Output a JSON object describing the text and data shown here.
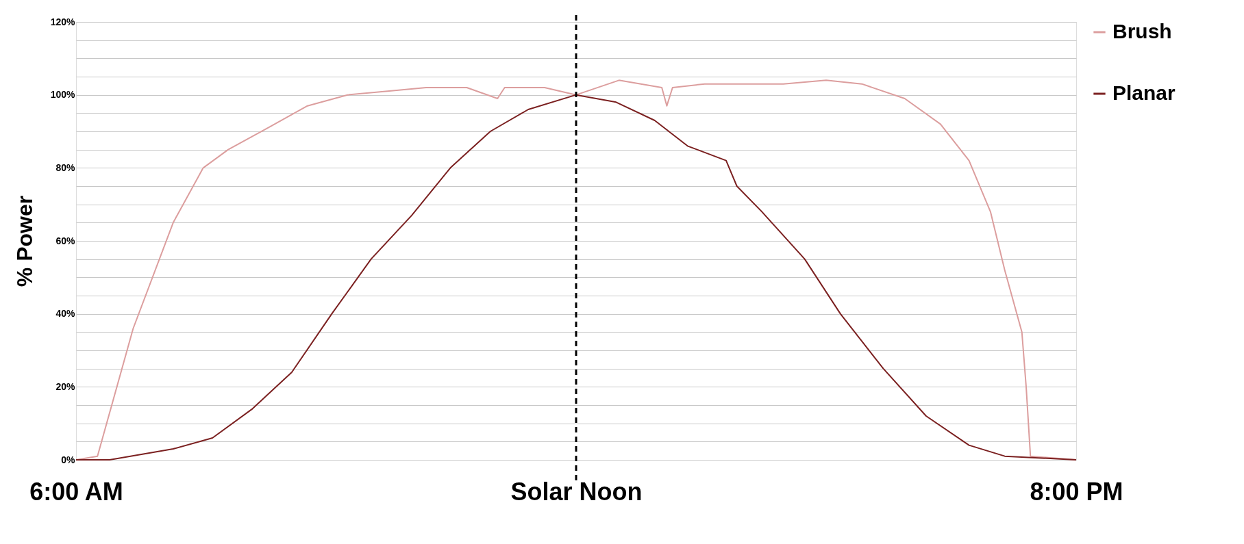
{
  "chart_data": {
    "type": "line",
    "ylabel": "% Power",
    "xlim": [
      6,
      20
    ],
    "xticks": [
      {
        "value": 6,
        "label": "6:00 AM"
      },
      {
        "value": 13,
        "label": "Solar Noon"
      },
      {
        "value": 20,
        "label": "8:00 PM"
      }
    ],
    "ylim": [
      0,
      120
    ],
    "yticks": [
      {
        "value": 0,
        "label": "0%"
      },
      {
        "value": 5,
        "label": null
      },
      {
        "value": 10,
        "label": null
      },
      {
        "value": 15,
        "label": null
      },
      {
        "value": 20,
        "label": "20%"
      },
      {
        "value": 25,
        "label": null
      },
      {
        "value": 30,
        "label": null
      },
      {
        "value": 35,
        "label": null
      },
      {
        "value": 40,
        "label": "40%"
      },
      {
        "value": 45,
        "label": null
      },
      {
        "value": 50,
        "label": null
      },
      {
        "value": 55,
        "label": null
      },
      {
        "value": 60,
        "label": "60%"
      },
      {
        "value": 65,
        "label": null
      },
      {
        "value": 70,
        "label": null
      },
      {
        "value": 75,
        "label": null
      },
      {
        "value": 80,
        "label": "80%"
      },
      {
        "value": 85,
        "label": null
      },
      {
        "value": 90,
        "label": null
      },
      {
        "value": 95,
        "label": null
      },
      {
        "value": 100,
        "label": "100%"
      },
      {
        "value": 105,
        "label": null
      },
      {
        "value": 110,
        "label": null
      },
      {
        "value": 115,
        "label": null
      },
      {
        "value": 120,
        "label": "120%"
      }
    ],
    "grid": "y",
    "legend": "right",
    "line_style": "solid",
    "ref_lines": [
      {
        "axis": "x",
        "value": 13,
        "label": null,
        "color": "#000000",
        "line_style": "dashed"
      }
    ],
    "series": [
      {
        "name": "Brush",
        "color": "#dc9e9e",
        "x": [
          6,
          6.3,
          6.8,
          7.36,
          7.78,
          8.13,
          8.69,
          9.24,
          9.8,
          10.36,
          10.9,
          11.47,
          11.9,
          12.0,
          12.56,
          13,
          13.6,
          14.2,
          14.27,
          14.35,
          14.8,
          15.9,
          16.5,
          17,
          17.6,
          18.1,
          18.5,
          18.8,
          19.0,
          19.24,
          19.3,
          19.36,
          20
        ],
        "values": [
          0,
          1,
          36,
          65,
          80,
          85,
          91,
          97,
          100,
          101,
          102,
          102,
          99,
          102,
          102,
          100,
          104,
          102,
          97,
          102,
          103,
          103,
          104,
          103,
          99,
          92,
          82,
          68,
          52,
          35,
          20,
          1,
          0
        ]
      },
      {
        "name": "Planar",
        "color": "#7b2020",
        "x": [
          6,
          6.47,
          7.36,
          7.91,
          8.47,
          9.02,
          9.58,
          10.13,
          10.7,
          11.24,
          11.8,
          12.33,
          13,
          13.56,
          14.1,
          14.56,
          15.1,
          15.25,
          15.6,
          16.2,
          16.7,
          17.3,
          17.9,
          18.5,
          19.0,
          20
        ],
        "values": [
          0,
          0,
          3,
          6,
          14,
          24,
          40,
          55,
          67,
          80,
          90,
          96,
          100,
          98,
          93,
          86,
          82,
          75,
          68,
          55,
          40,
          25,
          12,
          4,
          1,
          0
        ]
      }
    ]
  }
}
